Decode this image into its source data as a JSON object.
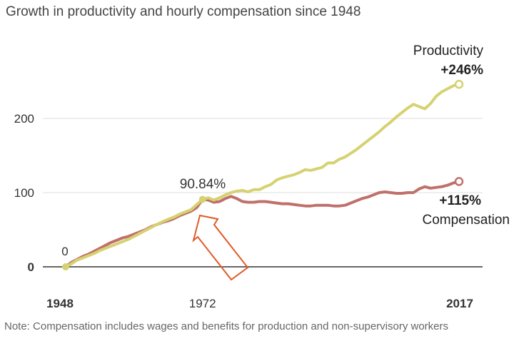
{
  "chart_data": {
    "type": "line",
    "title": "Growth in productivity and hourly compensation since 1948",
    "xlabel": "",
    "ylabel": "",
    "xlim": [
      1948,
      2017
    ],
    "ylim": [
      0,
      260
    ],
    "yticks": [
      0,
      100,
      200
    ],
    "ytick_labels": [
      "0",
      "100",
      "200"
    ],
    "xticks": [
      1948,
      1972,
      2017
    ],
    "xtick_labels": [
      "1948",
      "1972",
      "2017"
    ],
    "grid": true,
    "x": [
      1948,
      1949,
      1950,
      1951,
      1952,
      1953,
      1954,
      1955,
      1956,
      1957,
      1958,
      1959,
      1960,
      1961,
      1962,
      1963,
      1964,
      1965,
      1966,
      1967,
      1968,
      1969,
      1970,
      1971,
      1972,
      1973,
      1974,
      1975,
      1976,
      1977,
      1978,
      1979,
      1980,
      1981,
      1982,
      1983,
      1984,
      1985,
      1986,
      1987,
      1988,
      1989,
      1990,
      1991,
      1992,
      1993,
      1994,
      1995,
      1996,
      1997,
      1998,
      1999,
      2000,
      2001,
      2002,
      2003,
      2004,
      2005,
      2006,
      2007,
      2008,
      2009,
      2010,
      2011,
      2012,
      2013,
      2014,
      2015,
      2016,
      2017
    ],
    "series": [
      {
        "name": "Productivity",
        "color": "#d6d271",
        "values": [
          0,
          4,
          9,
          12,
          15,
          18,
          22,
          25,
          28,
          31,
          34,
          37,
          41,
          45,
          49,
          53,
          57,
          61,
          64,
          67,
          71,
          74,
          77,
          84,
          91,
          93,
          90,
          93,
          97,
          100,
          102,
          103,
          101,
          104,
          104,
          108,
          111,
          117,
          120,
          122,
          124,
          127,
          131,
          130,
          132,
          134,
          140,
          140,
          145,
          148,
          153,
          158,
          164,
          170,
          176,
          182,
          189,
          195,
          202,
          208,
          214,
          219,
          216,
          213,
          220,
          230,
          236,
          240,
          244,
          246
        ],
        "end_label": "Productivity",
        "end_value_label": "+246%"
      },
      {
        "name": "Compensation",
        "color": "#c0706b",
        "values": [
          0,
          6,
          10,
          14,
          17,
          21,
          25,
          29,
          33,
          36,
          39,
          41,
          44,
          47,
          50,
          54,
          57,
          60,
          62,
          65,
          69,
          72,
          75,
          80,
          91,
          90,
          87,
          88,
          92,
          95,
          92,
          88,
          87,
          87,
          88,
          88,
          87,
          86,
          85,
          85,
          84,
          83,
          82,
          82,
          83,
          83,
          83,
          82,
          82,
          83,
          86,
          89,
          92,
          94,
          97,
          100,
          101,
          100,
          99,
          99,
          100,
          100,
          105,
          108,
          106,
          107,
          108,
          110,
          113,
          115
        ],
        "end_label": "Compensation",
        "end_value_label": "+115%"
      }
    ],
    "annotations": [
      {
        "text": "0",
        "x": 1948,
        "y": 0
      },
      {
        "text": "90.84%",
        "x": 1972,
        "y": 90.84
      }
    ],
    "note": "Note: Compensation includes wages and benefits for production and non-supervisory workers"
  },
  "colors": {
    "axis": "#333333",
    "grid": "#dddddd",
    "arrow": "#e05a28"
  }
}
